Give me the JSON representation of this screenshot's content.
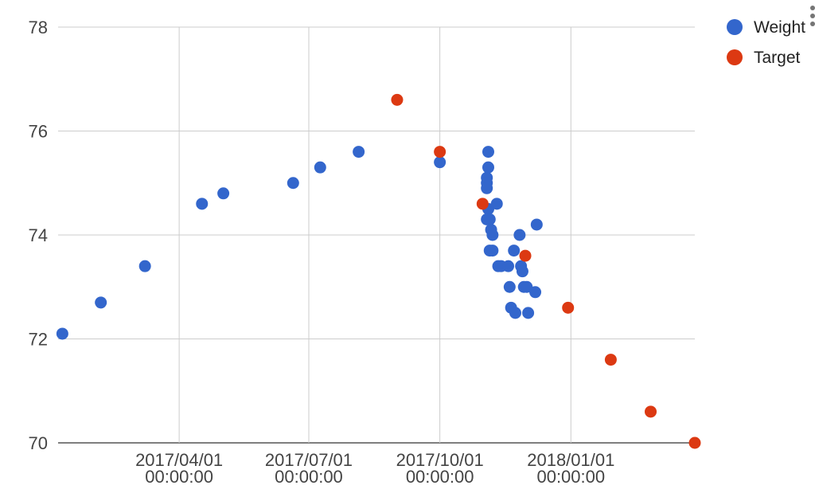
{
  "chart_data": {
    "type": "scatter",
    "x_axis_type": "date",
    "y_ticks": [
      "70",
      "72",
      "74",
      "76",
      "78"
    ],
    "y_tick_values": [
      70,
      72,
      74,
      76,
      78
    ],
    "x_ticks": [
      {
        "date": "2017-04-01",
        "label_line1": "2017/04/01",
        "label_line2": "00:00:00"
      },
      {
        "date": "2017-07-01",
        "label_line1": "2017/07/01",
        "label_line2": "00:00:00"
      },
      {
        "date": "2017-10-01",
        "label_line1": "2017/10/01",
        "label_line2": "00:00:00"
      },
      {
        "date": "2018-01-01",
        "label_line1": "2018/01/01",
        "label_line2": "00:00:00"
      }
    ],
    "xlim": [
      "2017-01-06",
      "2018-03-29"
    ],
    "ylim": [
      70,
      78
    ],
    "grid": true,
    "legend_position": "top-right",
    "series": [
      {
        "name": "Weight",
        "color": "#3366cc",
        "points": [
          {
            "x": "2017-01-09",
            "y": 72.1
          },
          {
            "x": "2017-02-05",
            "y": 72.7
          },
          {
            "x": "2017-03-08",
            "y": 73.4
          },
          {
            "x": "2017-04-17",
            "y": 74.6
          },
          {
            "x": "2017-05-02",
            "y": 74.8
          },
          {
            "x": "2017-06-20",
            "y": 75.0
          },
          {
            "x": "2017-07-09",
            "y": 75.3
          },
          {
            "x": "2017-08-05",
            "y": 75.6
          },
          {
            "x": "2017-10-01",
            "y": 75.4
          },
          {
            "x": "2017-11-04",
            "y": 75.6
          },
          {
            "x": "2017-11-04",
            "y": 75.3
          },
          {
            "x": "2017-11-03",
            "y": 75.1
          },
          {
            "x": "2017-11-03",
            "y": 75.0
          },
          {
            "x": "2017-11-03",
            "y": 74.9
          },
          {
            "x": "2017-11-04",
            "y": 74.5
          },
          {
            "x": "2017-11-03",
            "y": 74.3
          },
          {
            "x": "2017-11-05",
            "y": 74.3
          },
          {
            "x": "2017-11-10",
            "y": 74.6
          },
          {
            "x": "2017-11-06",
            "y": 74.1
          },
          {
            "x": "2017-11-07",
            "y": 74.0
          },
          {
            "x": "2017-11-05",
            "y": 73.7
          },
          {
            "x": "2017-11-07",
            "y": 73.7
          },
          {
            "x": "2017-11-11",
            "y": 73.4
          },
          {
            "x": "2017-11-13",
            "y": 73.4
          },
          {
            "x": "2017-11-18",
            "y": 73.4
          },
          {
            "x": "2017-11-22",
            "y": 73.7
          },
          {
            "x": "2017-11-26",
            "y": 74.0
          },
          {
            "x": "2017-12-08",
            "y": 74.2
          },
          {
            "x": "2017-11-27",
            "y": 73.4
          },
          {
            "x": "2017-11-28",
            "y": 73.3
          },
          {
            "x": "2017-11-19",
            "y": 73.0
          },
          {
            "x": "2017-11-29",
            "y": 73.0
          },
          {
            "x": "2017-12-01",
            "y": 73.0
          },
          {
            "x": "2017-12-07",
            "y": 72.9
          },
          {
            "x": "2017-11-20",
            "y": 72.6
          },
          {
            "x": "2017-11-23",
            "y": 72.5
          },
          {
            "x": "2017-12-02",
            "y": 72.5
          }
        ]
      },
      {
        "name": "Target",
        "color": "#dc3912",
        "points": [
          {
            "x": "2017-09-01",
            "y": 76.6
          },
          {
            "x": "2017-10-01",
            "y": 75.6
          },
          {
            "x": "2017-10-31",
            "y": 74.6
          },
          {
            "x": "2017-11-30",
            "y": 73.6
          },
          {
            "x": "2017-12-30",
            "y": 72.6
          },
          {
            "x": "2018-01-29",
            "y": 71.6
          },
          {
            "x": "2018-02-26",
            "y": 70.6
          },
          {
            "x": "2018-03-29",
            "y": 70.0
          }
        ]
      }
    ]
  }
}
